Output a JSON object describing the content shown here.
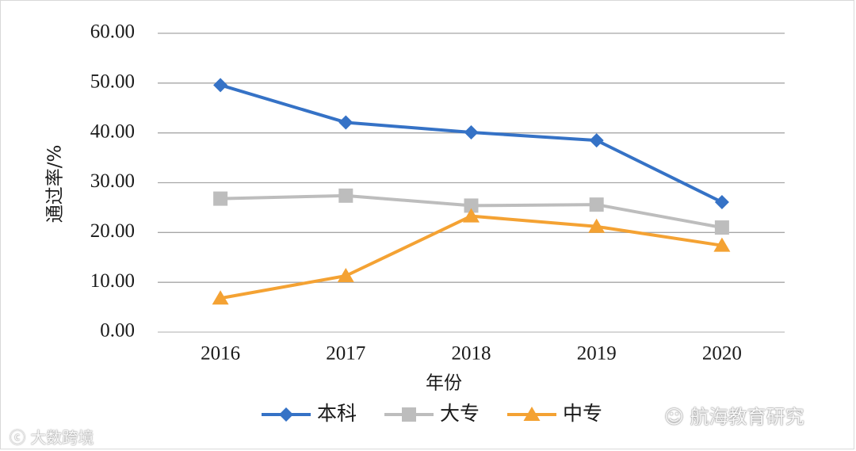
{
  "chart_data": {
    "type": "line",
    "title": "",
    "xlabel": "年份",
    "ylabel": "通过率/%",
    "categories": [
      "2016",
      "2017",
      "2018",
      "2019",
      "2020"
    ],
    "ylim": [
      0,
      60
    ],
    "yticks": [
      "0.00",
      "10.00",
      "20.00",
      "30.00",
      "40.00",
      "50.00",
      "60.00"
    ],
    "grid": true,
    "legend_position": "bottom",
    "series": [
      {
        "name": "本科",
        "marker": "diamond",
        "color": "#3572c6",
        "values": [
          49.6,
          42.1,
          40.1,
          38.5,
          26.1
        ]
      },
      {
        "name": "大专",
        "marker": "square",
        "color": "#bdbdbd",
        "values": [
          26.8,
          27.4,
          25.4,
          25.6,
          21.0
        ]
      },
      {
        "name": "中专",
        "marker": "triangle",
        "color": "#f4a233",
        "values": [
          6.8,
          11.3,
          23.3,
          21.2,
          17.4
        ]
      }
    ]
  },
  "watermarks": {
    "left": "大数跨境",
    "right": "航海教育研究"
  }
}
